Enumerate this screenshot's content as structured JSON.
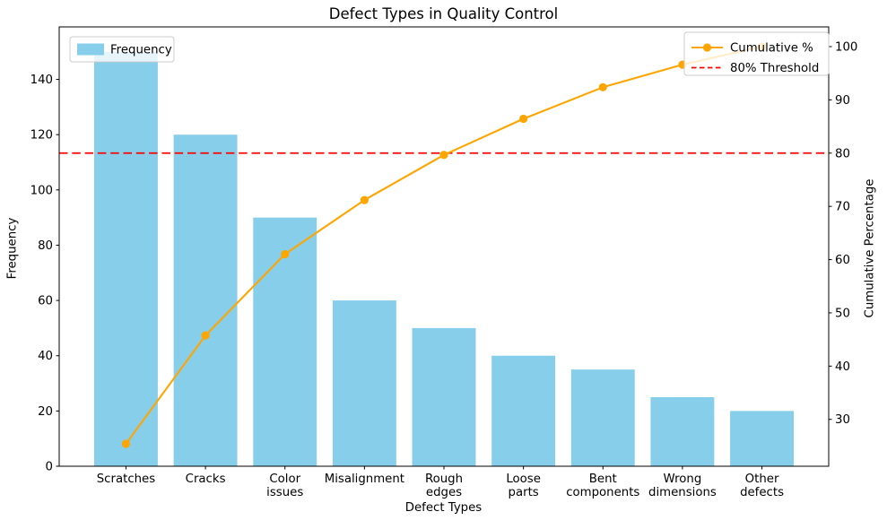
{
  "chart_data": {
    "type": "pareto (bar + line combo)",
    "title": "Defect Types in Quality Control",
    "xlabel": "Defect Types",
    "ylabel_left": "Frequency",
    "ylabel_right": "Cumulative Percentage",
    "categories": [
      "Scratches",
      "Cracks",
      "Color issues",
      "Misalignment",
      "Rough edges",
      "Loose parts",
      "Bent components",
      "Wrong dimensions",
      "Other defects"
    ],
    "category_tick_lines": [
      [
        "Scratches"
      ],
      [
        "Cracks"
      ],
      [
        "Color",
        "issues"
      ],
      [
        "Misalignment"
      ],
      [
        "Rough",
        "edges"
      ],
      [
        "Loose",
        "parts"
      ],
      [
        "Bent",
        "components"
      ],
      [
        "Wrong",
        "dimensions"
      ],
      [
        "Other",
        "defects"
      ]
    ],
    "series": [
      {
        "name": "Frequency",
        "type": "bar",
        "axis": "left",
        "color": "#87CEEB",
        "values": [
          150,
          120,
          90,
          60,
          50,
          40,
          35,
          25,
          20
        ]
      },
      {
        "name": "Cumulative %",
        "type": "line",
        "axis": "right",
        "color": "#FFA500",
        "marker": "circle",
        "values": [
          25.42,
          45.76,
          61.02,
          71.19,
          79.66,
          86.44,
          92.37,
          96.61,
          100.0
        ]
      }
    ],
    "threshold_line": {
      "label": "80% Threshold",
      "value": 80,
      "axis": "right",
      "color": "#FF0000",
      "style": "dashed"
    },
    "axes": {
      "left_ticks": [
        0,
        20,
        40,
        60,
        80,
        100,
        120,
        140
      ],
      "right_ticks": [
        30,
        40,
        50,
        60,
        70,
        80,
        90,
        100
      ],
      "left_ylim": [
        0,
        159
      ],
      "right_ylim": [
        21.2,
        103.7
      ],
      "grid": false
    },
    "legends": [
      {
        "position": "upper-left",
        "entries": [
          {
            "label": "Frequency",
            "handle": "patch",
            "color": "#87CEEB"
          }
        ]
      },
      {
        "position": "upper-right",
        "entries": [
          {
            "label": "Cumulative %",
            "handle": "line-marker",
            "color": "#FFA500"
          },
          {
            "label": "80% Threshold",
            "handle": "dashed-line",
            "color": "#FF0000"
          }
        ]
      }
    ],
    "colors": {
      "bar": "#87CEEB",
      "cumulative_line": "#FFA500",
      "threshold": "#FF0000",
      "spine": "#000000",
      "text": "#000000",
      "legend_border": "#cccccc",
      "legend_bg": "#ffffff"
    }
  }
}
